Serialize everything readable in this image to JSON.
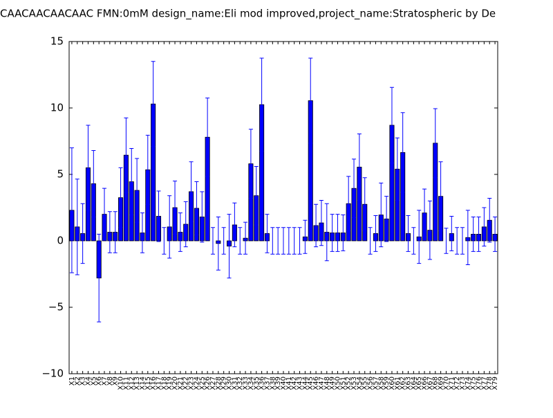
{
  "chart_data": {
    "type": "bar",
    "title": "CAACAACAACAAC  FMN:0mM  design_name:Eli mod improved,project_name:Stratospheric by De",
    "categories": [
      "X1",
      "X2",
      "X3",
      "X4",
      "X5",
      "X6",
      "X7",
      "X8",
      "X9",
      "X10",
      "X11",
      "X12",
      "X13",
      "X14",
      "X15",
      "X16",
      "X17",
      "X18",
      "X19",
      "X20",
      "X21",
      "X22",
      "X23",
      "X24",
      "X25",
      "X26",
      "X27",
      "X28",
      "X29",
      "X30",
      "X31",
      "X32",
      "X33",
      "X34",
      "X35",
      "X36",
      "X37",
      "X38",
      "X39",
      "X40",
      "X41",
      "X42",
      "X43",
      "X44",
      "X45",
      "X46",
      "X47",
      "X48",
      "X49",
      "X50",
      "X51",
      "X52",
      "X53",
      "X54",
      "X55",
      "X56",
      "X57",
      "X58",
      "X59",
      "X60",
      "X61",
      "X62",
      "X63",
      "X64",
      "X65",
      "X66",
      "X67",
      "X68",
      "X69",
      "X70",
      "X71",
      "X72",
      "X73",
      "X74",
      "X75",
      "X76",
      "X77",
      "X78",
      "X79"
    ],
    "values": [
      2.3,
      1.05,
      0.55,
      5.5,
      4.3,
      -2.8,
      2.0,
      0.65,
      0.65,
      3.25,
      6.45,
      4.45,
      3.8,
      0.6,
      5.35,
      10.3,
      1.85,
      0,
      1.05,
      2.5,
      0.65,
      1.25,
      3.7,
      2.45,
      1.8,
      7.8,
      0,
      -0.2,
      0,
      -0.4,
      1.2,
      0,
      0.2,
      5.8,
      3.4,
      10.25,
      0.55,
      0,
      0,
      0,
      0,
      0,
      0,
      0.3,
      10.55,
      1.15,
      1.35,
      0.65,
      0.6,
      0.6,
      0.6,
      2.8,
      3.95,
      5.55,
      2.75,
      0,
      0.55,
      1.95,
      1.65,
      8.7,
      5.4,
      6.65,
      0.55,
      0,
      0.3,
      2.1,
      0.8,
      7.35,
      3.35,
      0,
      0.55,
      0,
      0,
      0.25,
      0.5,
      0.5,
      1.05,
      1.55,
      0.5
    ],
    "errors": [
      4.7,
      3.6,
      2.25,
      3.2,
      2.5,
      3.3,
      1.95,
      1.55,
      1.55,
      2.25,
      2.8,
      2.5,
      2.4,
      1.5,
      2.6,
      3.2,
      1.9,
      1.0,
      2.35,
      2.0,
      1.45,
      1.7,
      2.25,
      2.0,
      1.9,
      2.95,
      1.0,
      2.0,
      1.0,
      2.4,
      1.65,
      1.0,
      1.2,
      2.6,
      2.2,
      3.5,
      1.45,
      1.0,
      1.0,
      1.0,
      1.0,
      1.0,
      1.0,
      1.25,
      3.2,
      1.6,
      1.7,
      2.15,
      1.4,
      1.4,
      1.35,
      2.05,
      2.2,
      2.5,
      2.0,
      1.0,
      1.35,
      2.4,
      1.7,
      2.85,
      2.35,
      3.0,
      1.35,
      1.0,
      2.0,
      1.8,
      2.2,
      2.6,
      2.6,
      0.95,
      1.3,
      1.0,
      1.0,
      2.05,
      1.3,
      1.3,
      1.45,
      1.65,
      1.3
    ],
    "color": "#0000ff",
    "error_color": "#0000ff",
    "ylim": [
      -10,
      15
    ],
    "yticks": [
      {
        "value": -10,
        "label": "−10"
      },
      {
        "value": -5,
        "label": "−5"
      },
      0,
      5,
      10,
      15
    ]
  }
}
